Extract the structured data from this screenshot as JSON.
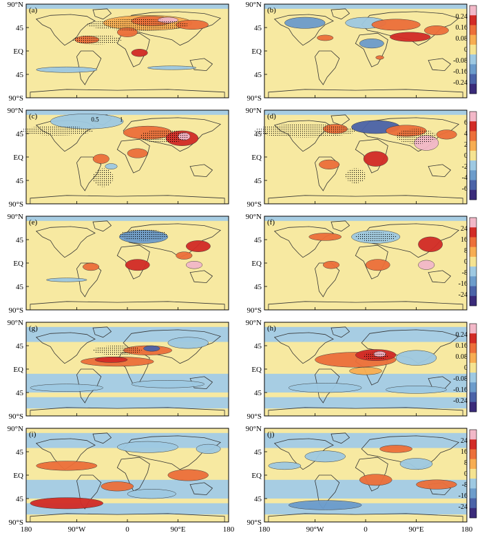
{
  "figure": {
    "panels": [
      "(a)",
      "(b)",
      "(c)",
      "(d)",
      "(e)",
      "(f)",
      "(g)",
      "(h)",
      "(i)",
      "(j)"
    ],
    "lat_ticks": [
      "90°N",
      "45",
      "EQ",
      "45",
      "90°S"
    ],
    "lon_ticks": [
      "180",
      "90°W",
      "0",
      "90°E",
      "180"
    ],
    "inline_labels": [
      "0.5",
      "1"
    ]
  },
  "chart_data": {
    "type": "heatmap",
    "title": "",
    "x_ticks": [
      "180",
      "90°W",
      "0",
      "90°E",
      "180"
    ],
    "y_ticks": [
      "90°N",
      "45",
      "EQ",
      "45",
      "90°S"
    ],
    "colorbars": [
      {
        "rows": "a-b",
        "labels": [
          "0.24",
          "0.16",
          "0.08",
          "0",
          "-0.08",
          "-0.16",
          "-0.24"
        ]
      },
      {
        "rows": "c-d",
        "labels": [
          "6",
          "4",
          "2",
          "0",
          "-2",
          "-4",
          "-6"
        ]
      },
      {
        "rows": "e-f",
        "labels": [
          "24",
          "16",
          "8",
          "0",
          "-8",
          "-16",
          "-24"
        ]
      },
      {
        "rows": "g-h",
        "labels": [
          "0.24",
          "0.16",
          "0.08",
          "0",
          "-0.08",
          "-0.16",
          "-0.24"
        ]
      },
      {
        "rows": "i-j",
        "labels": [
          "24",
          "16",
          "8",
          "0",
          "-8",
          "-16",
          "-24"
        ]
      }
    ],
    "color_scale": [
      "#f2b8c8",
      "#d22b26",
      "#ec6f3a",
      "#f7ad52",
      "#f5e391",
      "#9ec9e2",
      "#6c9ccb",
      "#4b63a8",
      "#3a2b7a"
    ],
    "ocean_fill": "#f7e9a1",
    "negative_fill": "#a7cde3"
  }
}
